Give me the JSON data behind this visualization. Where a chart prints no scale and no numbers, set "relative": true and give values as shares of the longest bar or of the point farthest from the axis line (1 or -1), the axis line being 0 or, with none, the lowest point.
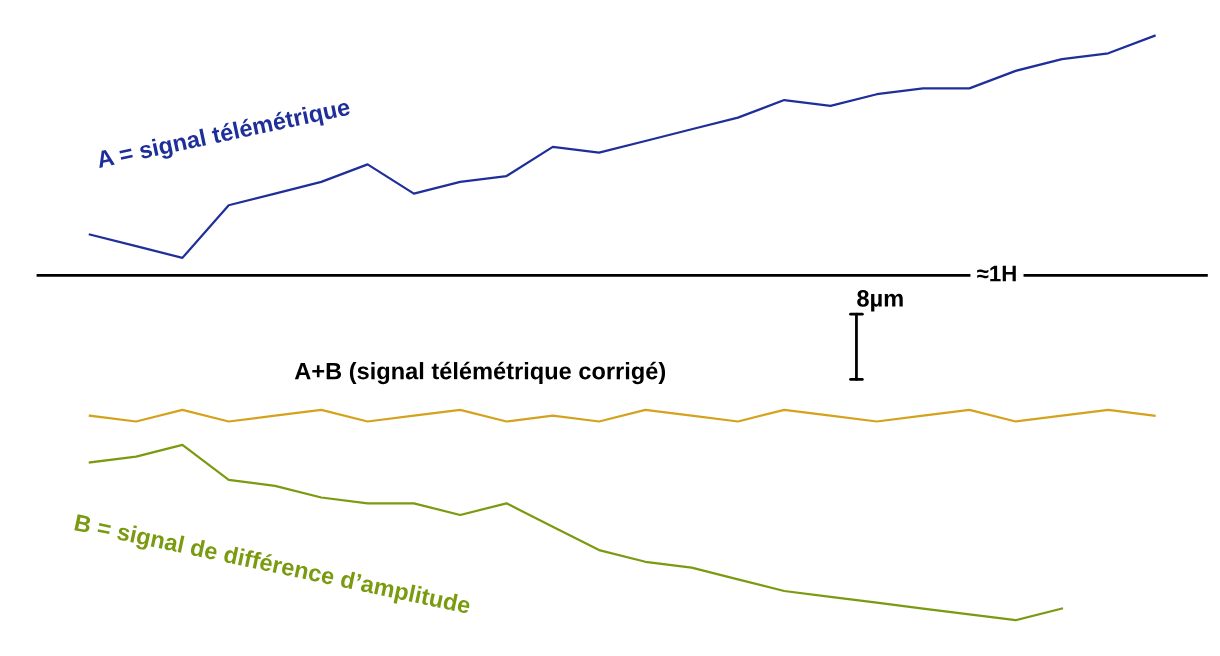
{
  "chart_data": {
    "type": "line",
    "relative": true,
    "categories": [
      null,
      null,
      null,
      null,
      null,
      null,
      null,
      null,
      null,
      null,
      null,
      null,
      null,
      null,
      null,
      null,
      null,
      null,
      null,
      null,
      null,
      null,
      null,
      null
    ],
    "series": [
      {
        "name": "A = signal télémétrique",
        "color": "#1f2f9a",
        "values": [
          0.66,
          0.64,
          0.62,
          0.71,
          0.73,
          0.75,
          0.78,
          0.73,
          0.75,
          0.76,
          0.81,
          0.8,
          0.82,
          0.84,
          0.86,
          0.89,
          0.88,
          0.9,
          0.91,
          0.91,
          0.94,
          0.96,
          0.97,
          1
        ]
      },
      {
        "color": "#d4a21c",
        "values": [
          0.35,
          0.34,
          0.36,
          0.34,
          0.35,
          0.36,
          0.34,
          0.35,
          0.36,
          0.34,
          0.35,
          0.34,
          0.36,
          0.35,
          0.34,
          0.36,
          0.35,
          0.34,
          0.35,
          0.36,
          0.34,
          0.35,
          0.36,
          0.35
        ]
      },
      {
        "name": "B = signal de différence d’amplitude",
        "color": "#7a9a10",
        "values": [
          0.27,
          0.28,
          0.3,
          0.24,
          0.23,
          0.21,
          0.2,
          0.2,
          0.18,
          0.2,
          0.16,
          0.12,
          0.1,
          0.09,
          0.07,
          0.05,
          0.04,
          0.03,
          0.02,
          0.01,
          0,
          0.02,
          null,
          null
        ]
      }
    ],
    "ref_lines": [
      {
        "axis": "y",
        "value": 0.59,
        "label": "≈1H",
        "color": "#000000"
      }
    ],
    "annotations": [
      "8µm",
      "A+B (signal télémétrique corrigé)"
    ],
    "legend": false
  }
}
